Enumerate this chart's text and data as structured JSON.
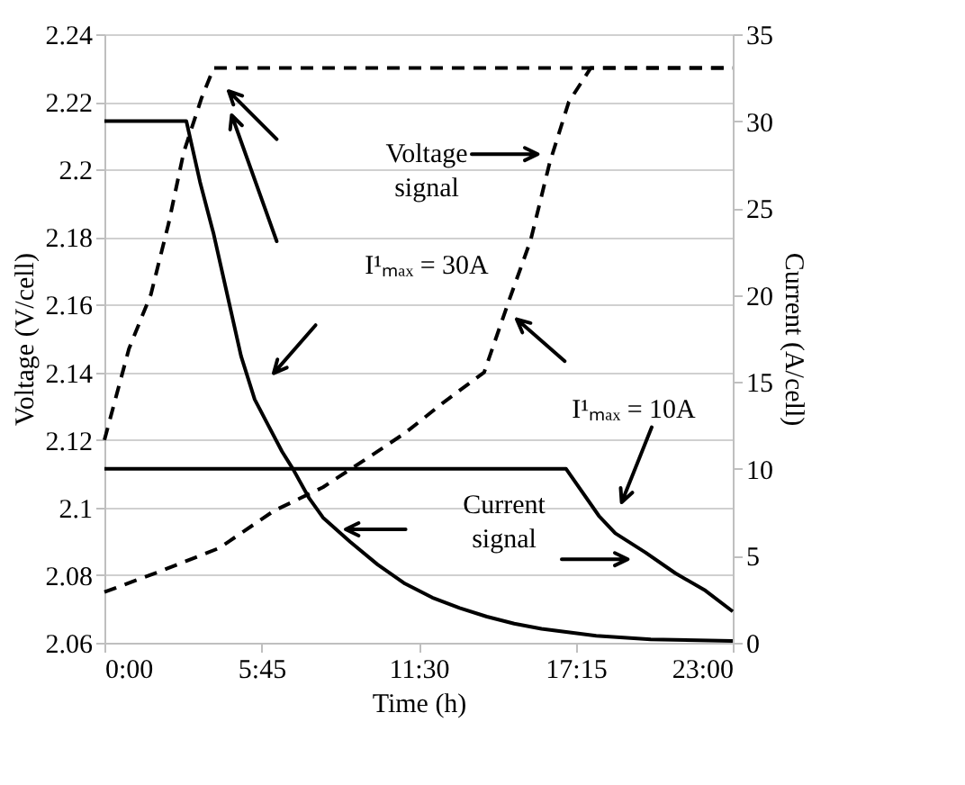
{
  "chart_data": {
    "type": "line",
    "xlabel": "Time (h)",
    "ylabel": "Voltage (V/cell)",
    "y2label": "Current (A/cell)",
    "xlim": [
      0,
      23
    ],
    "xticks": [
      {
        "value": 0,
        "label": "0:00"
      },
      {
        "value": 5.75,
        "label": "5:45"
      },
      {
        "value": 11.5,
        "label": "11:30"
      },
      {
        "value": 17.25,
        "label": "17:15"
      },
      {
        "value": 23,
        "label": "23:00"
      }
    ],
    "ylim": [
      2.06,
      2.24
    ],
    "yticks": [
      2.06,
      2.08,
      2.1,
      2.12,
      2.14,
      2.16,
      2.18,
      2.2,
      2.22,
      2.24
    ],
    "y2lim": [
      0,
      35
    ],
    "y2ticks": [
      0,
      5,
      10,
      15,
      20,
      25,
      30,
      35
    ],
    "grid": "y",
    "marker": "none",
    "series": [
      {
        "color": "#000000",
        "line_style": "dashed",
        "x": [
          0,
          0.9,
          1.7,
          2.35,
          2.9,
          3.55,
          4.0,
          23
        ],
        "values": [
          2.12,
          2.147,
          2.163,
          2.184,
          2.205,
          2.221,
          2.23,
          2.23
        ]
      },
      {
        "color": "#000000",
        "line_style": "dashed",
        "x": [
          0,
          2.0,
          4.2,
          6.2,
          8.0,
          9.7,
          11.0,
          12.4,
          13.9,
          14.8,
          15.6,
          16.3,
          17.0,
          17.8,
          23
        ],
        "values": [
          2.075,
          2.081,
          2.088,
          2.099,
          2.106,
          2.115,
          2.122,
          2.131,
          2.14,
          2.161,
          2.179,
          2.202,
          2.22,
          2.23,
          2.23
        ]
      },
      {
        "color": "#000000",
        "line_style": "solid",
        "axis": "y2",
        "x": [
          0,
          3.0,
          3.5,
          4.0,
          4.5,
          5.0,
          5.5,
          6.0,
          6.5,
          6.9,
          7.5,
          8.0,
          9.0,
          10.0,
          11.0,
          12.0,
          13.0,
          14.0,
          15.0,
          16.0,
          18.0,
          20.0,
          23.0
        ],
        "values": [
          30,
          30,
          26.5,
          23.5,
          20,
          16.5,
          14,
          12.5,
          11,
          10,
          8.3,
          7.2,
          5.8,
          4.5,
          3.4,
          2.6,
          2.0,
          1.5,
          1.1,
          0.8,
          0.4,
          0.2,
          0.1
        ]
      },
      {
        "color": "#000000",
        "line_style": "solid",
        "axis": "y2",
        "x": [
          0,
          16.9,
          18.1,
          18.7,
          19.8,
          20.9,
          22.0,
          23.0
        ],
        "values": [
          10,
          10,
          7.3,
          6.3,
          5.2,
          4.0,
          3.0,
          1.8
        ]
      }
    ],
    "annotations": [
      "Voltage\nsignal",
      "I¹ₘₐₓ = 30A",
      "I¹ₘₐₓ = 10A",
      "Current\nsignal"
    ]
  }
}
